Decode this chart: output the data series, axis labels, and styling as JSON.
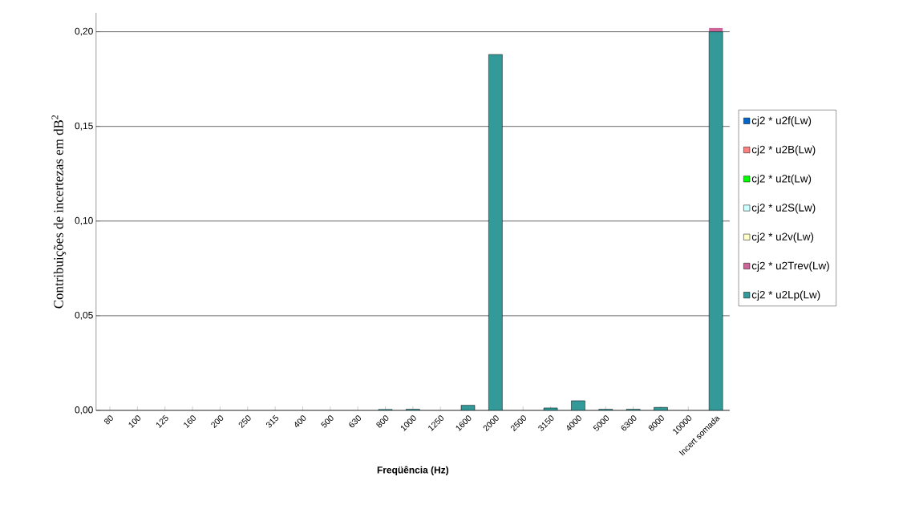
{
  "chart_data": {
    "type": "bar",
    "stacked": true,
    "xlabel": "**Freqüência (Hz)**",
    "ylabel": "Contribuições de incertezas em dB$^{2}$",
    "categories": [
      "80",
      "100",
      "125",
      "160",
      "200",
      "250",
      "315",
      "400",
      "500",
      "630",
      "800",
      "1000",
      "1250",
      "1600",
      "2000",
      "2500",
      "3150",
      "4000",
      "5000",
      "6300",
      "8000",
      "10000",
      "Incert somada"
    ],
    "series": [
      {
        "name": "cj2 * u2Lp(Lw)",
        "color": "#339999",
        "values": [
          0,
          0,
          0,
          0,
          0,
          0,
          0,
          0,
          0,
          0,
          0.0005,
          0.0006,
          0,
          0.0027,
          0.188,
          0,
          0.0013,
          0.0051,
          0.0006,
          0.0006,
          0.0016,
          0,
          0.2
        ]
      },
      {
        "name": "cj2 * u2Trev(Lw)",
        "color": "#cc6699",
        "values": [
          0,
          0,
          0,
          0,
          0,
          0,
          0,
          0,
          0,
          0,
          0,
          0,
          0,
          0,
          0,
          0,
          0,
          0,
          0,
          0,
          0,
          0,
          0.002
        ]
      },
      {
        "name": "cj2 * u2v(Lw)",
        "color": "#ffffcc",
        "values": [
          0,
          0,
          0,
          0,
          0,
          0,
          0,
          0,
          0,
          0,
          0,
          0,
          0,
          0,
          0,
          0,
          0,
          0,
          0,
          0,
          0,
          0,
          0
        ]
      },
      {
        "name": "cj2 * u2S(Lw)",
        "color": "#ccffff",
        "values": [
          0,
          0,
          0,
          0,
          0,
          0,
          0,
          0,
          0,
          0,
          0,
          0,
          0,
          0,
          0,
          0,
          0,
          0,
          0,
          0,
          0,
          0,
          0
        ]
      },
      {
        "name": "cj2 * u2t(Lw)",
        "color": "#00ff00",
        "values": [
          0,
          0,
          0,
          0,
          0,
          0,
          0,
          0,
          0,
          0,
          0,
          0,
          0,
          0,
          0,
          0,
          0,
          0,
          0,
          0,
          0,
          0,
          0
        ]
      },
      {
        "name": "cj2 * u2B(Lw)",
        "color": "#ff8080",
        "values": [
          0,
          0,
          0,
          0,
          0,
          0,
          0,
          0,
          0,
          0,
          0,
          0,
          0,
          0,
          0,
          0,
          0,
          0,
          0,
          0,
          0,
          0,
          0
        ]
      },
      {
        "name": "cj2 * u2f(Lw)",
        "color": "#0066cc",
        "values": [
          0,
          0,
          0,
          0,
          0,
          0,
          0,
          0,
          0,
          0,
          0,
          0,
          0,
          0,
          0,
          0,
          0,
          0,
          0,
          0,
          0,
          0,
          0
        ]
      }
    ],
    "ylim": [
      0,
      0.21
    ],
    "yticks": [
      {
        "value": 0,
        "label": "0,00"
      },
      {
        "value": 0.05,
        "label": "0,05"
      },
      {
        "value": 0.1,
        "label": "0,10"
      },
      {
        "value": 0.15,
        "label": "0,15"
      },
      {
        "value": 0.2,
        "label": "0,20"
      }
    ],
    "grid": "y",
    "legend": "right"
  }
}
